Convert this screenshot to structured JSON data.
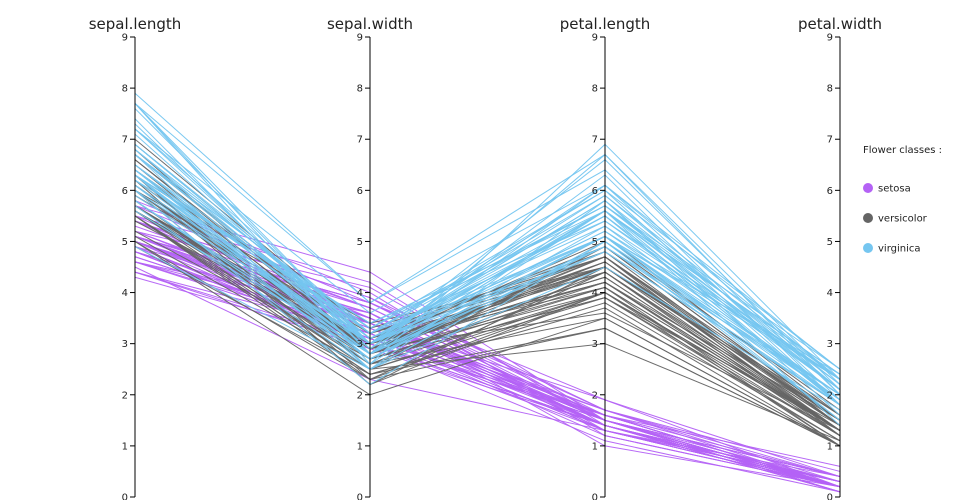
{
  "chart_data": {
    "type": "parallel_coordinates",
    "dimensions": [
      "sepal.length",
      "sepal.width",
      "petal.length",
      "petal.width"
    ],
    "axis_range": [
      0,
      9
    ],
    "ticks": [
      "0",
      "1",
      "2",
      "3",
      "4",
      "5",
      "6",
      "7",
      "8",
      "9"
    ],
    "legend": {
      "title": "Flower classes :",
      "placement": "right",
      "entries": [
        "setosa",
        "versicolor",
        "virginica"
      ]
    },
    "colors": {
      "setosa": "#b462f5",
      "versicolor": "#656565",
      "virginica": "#75c6f0"
    },
    "series": [
      {
        "name": "setosa",
        "rows": [
          [
            5.1,
            3.5,
            1.4,
            0.2
          ],
          [
            4.9,
            3.0,
            1.4,
            0.2
          ],
          [
            4.7,
            3.2,
            1.3,
            0.2
          ],
          [
            4.6,
            3.1,
            1.5,
            0.2
          ],
          [
            5.0,
            3.6,
            1.4,
            0.2
          ],
          [
            5.4,
            3.9,
            1.7,
            0.4
          ],
          [
            4.6,
            3.4,
            1.4,
            0.3
          ],
          [
            5.0,
            3.4,
            1.5,
            0.2
          ],
          [
            4.4,
            2.9,
            1.4,
            0.2
          ],
          [
            4.9,
            3.1,
            1.5,
            0.1
          ],
          [
            5.4,
            3.7,
            1.5,
            0.2
          ],
          [
            4.8,
            3.4,
            1.6,
            0.2
          ],
          [
            4.8,
            3.0,
            1.4,
            0.1
          ],
          [
            4.3,
            3.0,
            1.1,
            0.1
          ],
          [
            5.8,
            4.0,
            1.2,
            0.2
          ],
          [
            5.7,
            4.4,
            1.5,
            0.4
          ],
          [
            5.4,
            3.9,
            1.3,
            0.4
          ],
          [
            5.1,
            3.5,
            1.4,
            0.3
          ],
          [
            5.7,
            3.8,
            1.7,
            0.3
          ],
          [
            5.1,
            3.8,
            1.5,
            0.3
          ],
          [
            5.4,
            3.4,
            1.7,
            0.2
          ],
          [
            5.1,
            3.7,
            1.5,
            0.4
          ],
          [
            4.6,
            3.6,
            1.0,
            0.2
          ],
          [
            5.1,
            3.3,
            1.7,
            0.5
          ],
          [
            4.8,
            3.4,
            1.9,
            0.2
          ],
          [
            5.0,
            3.0,
            1.6,
            0.2
          ],
          [
            5.0,
            3.4,
            1.6,
            0.4
          ],
          [
            5.2,
            3.5,
            1.5,
            0.2
          ],
          [
            5.2,
            3.4,
            1.4,
            0.2
          ],
          [
            4.7,
            3.2,
            1.6,
            0.2
          ],
          [
            4.8,
            3.1,
            1.6,
            0.2
          ],
          [
            5.4,
            3.4,
            1.5,
            0.4
          ],
          [
            5.2,
            4.1,
            1.5,
            0.1
          ],
          [
            5.5,
            4.2,
            1.4,
            0.2
          ],
          [
            4.9,
            3.1,
            1.5,
            0.2
          ],
          [
            5.0,
            3.2,
            1.2,
            0.2
          ],
          [
            5.5,
            3.5,
            1.3,
            0.2
          ],
          [
            4.9,
            3.6,
            1.4,
            0.1
          ],
          [
            4.4,
            3.0,
            1.3,
            0.2
          ],
          [
            5.1,
            3.4,
            1.5,
            0.2
          ],
          [
            5.0,
            3.5,
            1.3,
            0.3
          ],
          [
            4.5,
            2.3,
            1.3,
            0.3
          ],
          [
            4.4,
            3.2,
            1.3,
            0.2
          ],
          [
            5.0,
            3.5,
            1.6,
            0.6
          ],
          [
            5.1,
            3.8,
            1.9,
            0.4
          ],
          [
            4.8,
            3.0,
            1.4,
            0.3
          ],
          [
            5.1,
            3.8,
            1.6,
            0.2
          ],
          [
            4.6,
            3.2,
            1.4,
            0.2
          ],
          [
            5.3,
            3.7,
            1.5,
            0.2
          ],
          [
            5.0,
            3.3,
            1.4,
            0.2
          ]
        ]
      },
      {
        "name": "versicolor",
        "rows": [
          [
            7.0,
            3.2,
            4.7,
            1.4
          ],
          [
            6.4,
            3.2,
            4.5,
            1.5
          ],
          [
            6.9,
            3.1,
            4.9,
            1.5
          ],
          [
            5.5,
            2.3,
            4.0,
            1.3
          ],
          [
            6.5,
            2.8,
            4.6,
            1.5
          ],
          [
            5.7,
            2.8,
            4.5,
            1.3
          ],
          [
            6.3,
            3.3,
            4.7,
            1.6
          ],
          [
            4.9,
            2.4,
            3.3,
            1.0
          ],
          [
            6.6,
            2.9,
            4.6,
            1.3
          ],
          [
            5.2,
            2.7,
            3.9,
            1.4
          ],
          [
            5.0,
            2.0,
            3.5,
            1.0
          ],
          [
            5.9,
            3.0,
            4.2,
            1.5
          ],
          [
            6.0,
            2.2,
            4.0,
            1.0
          ],
          [
            6.1,
            2.9,
            4.7,
            1.4
          ],
          [
            5.6,
            2.9,
            3.6,
            1.3
          ],
          [
            6.7,
            3.1,
            4.4,
            1.4
          ],
          [
            5.6,
            3.0,
            4.5,
            1.5
          ],
          [
            5.8,
            2.7,
            4.1,
            1.0
          ],
          [
            6.2,
            2.2,
            4.5,
            1.5
          ],
          [
            5.6,
            2.5,
            3.9,
            1.1
          ],
          [
            5.9,
            3.2,
            4.8,
            1.8
          ],
          [
            6.1,
            2.8,
            4.0,
            1.3
          ],
          [
            6.3,
            2.5,
            4.9,
            1.5
          ],
          [
            6.1,
            2.8,
            4.7,
            1.2
          ],
          [
            6.4,
            2.9,
            4.3,
            1.3
          ],
          [
            6.6,
            3.0,
            4.4,
            1.4
          ],
          [
            6.8,
            2.8,
            4.8,
            1.4
          ],
          [
            6.7,
            3.0,
            5.0,
            1.7
          ],
          [
            6.0,
            2.9,
            4.5,
            1.5
          ],
          [
            5.7,
            2.6,
            3.5,
            1.0
          ],
          [
            5.5,
            2.4,
            3.8,
            1.1
          ],
          [
            5.5,
            2.4,
            3.7,
            1.0
          ],
          [
            5.8,
            2.7,
            3.9,
            1.2
          ],
          [
            6.0,
            2.7,
            5.1,
            1.6
          ],
          [
            5.4,
            3.0,
            4.5,
            1.5
          ],
          [
            6.0,
            3.4,
            4.5,
            1.6
          ],
          [
            6.7,
            3.1,
            4.7,
            1.5
          ],
          [
            6.3,
            2.3,
            4.4,
            1.3
          ],
          [
            5.6,
            3.0,
            4.1,
            1.3
          ],
          [
            5.5,
            2.5,
            4.0,
            1.3
          ],
          [
            5.5,
            2.6,
            4.4,
            1.2
          ],
          [
            6.1,
            3.0,
            4.6,
            1.4
          ],
          [
            5.8,
            2.6,
            4.0,
            1.2
          ],
          [
            5.0,
            2.3,
            3.3,
            1.0
          ],
          [
            5.6,
            2.7,
            4.2,
            1.3
          ],
          [
            5.7,
            3.0,
            4.2,
            1.2
          ],
          [
            5.7,
            2.9,
            4.2,
            1.3
          ],
          [
            6.2,
            2.9,
            4.3,
            1.3
          ],
          [
            5.1,
            2.5,
            3.0,
            1.1
          ],
          [
            5.7,
            2.8,
            4.1,
            1.3
          ]
        ]
      },
      {
        "name": "virginica",
        "rows": [
          [
            6.3,
            3.3,
            6.0,
            2.5
          ],
          [
            5.8,
            2.7,
            5.1,
            1.9
          ],
          [
            7.1,
            3.0,
            5.9,
            2.1
          ],
          [
            6.3,
            2.9,
            5.6,
            1.8
          ],
          [
            6.5,
            3.0,
            5.8,
            2.2
          ],
          [
            7.6,
            3.0,
            6.6,
            2.1
          ],
          [
            4.9,
            2.5,
            4.5,
            1.7
          ],
          [
            7.3,
            2.9,
            6.3,
            1.8
          ],
          [
            6.7,
            2.5,
            5.8,
            1.8
          ],
          [
            7.2,
            3.6,
            6.1,
            2.5
          ],
          [
            6.5,
            3.2,
            5.1,
            2.0
          ],
          [
            6.4,
            2.7,
            5.3,
            1.9
          ],
          [
            6.8,
            3.0,
            5.5,
            2.1
          ],
          [
            5.7,
            2.5,
            5.0,
            2.0
          ],
          [
            5.8,
            2.8,
            5.1,
            2.4
          ],
          [
            6.4,
            3.2,
            5.3,
            2.3
          ],
          [
            6.5,
            3.0,
            5.5,
            1.8
          ],
          [
            7.7,
            3.8,
            6.7,
            2.2
          ],
          [
            7.7,
            2.6,
            6.9,
            2.3
          ],
          [
            6.0,
            2.2,
            5.0,
            1.5
          ],
          [
            6.9,
            3.2,
            5.7,
            2.3
          ],
          [
            5.6,
            2.8,
            4.9,
            2.0
          ],
          [
            7.7,
            2.8,
            6.7,
            2.0
          ],
          [
            6.3,
            2.7,
            4.9,
            1.8
          ],
          [
            6.7,
            3.3,
            5.7,
            2.1
          ],
          [
            7.2,
            3.2,
            6.0,
            1.8
          ],
          [
            6.2,
            2.8,
            4.8,
            1.8
          ],
          [
            6.1,
            3.0,
            4.9,
            1.8
          ],
          [
            6.4,
            2.8,
            5.6,
            2.1
          ],
          [
            7.2,
            3.0,
            5.8,
            1.6
          ],
          [
            7.4,
            2.8,
            6.1,
            1.9
          ],
          [
            7.9,
            3.8,
            6.4,
            2.0
          ],
          [
            6.4,
            2.8,
            5.6,
            2.2
          ],
          [
            6.3,
            2.8,
            5.1,
            1.5
          ],
          [
            6.1,
            2.6,
            5.6,
            1.4
          ],
          [
            7.7,
            3.0,
            6.1,
            2.3
          ],
          [
            6.3,
            3.4,
            5.6,
            2.4
          ],
          [
            6.4,
            3.1,
            5.5,
            1.8
          ],
          [
            6.0,
            3.0,
            4.8,
            1.8
          ],
          [
            6.9,
            3.1,
            5.4,
            2.1
          ],
          [
            6.7,
            3.1,
            5.6,
            2.4
          ],
          [
            6.9,
            3.1,
            5.1,
            2.3
          ],
          [
            5.8,
            2.7,
            5.1,
            1.9
          ],
          [
            6.8,
            3.2,
            5.9,
            2.3
          ],
          [
            6.7,
            3.3,
            5.7,
            2.5
          ],
          [
            6.7,
            3.0,
            5.2,
            2.3
          ],
          [
            6.3,
            2.5,
            5.0,
            1.9
          ],
          [
            6.5,
            3.0,
            5.2,
            2.0
          ],
          [
            6.2,
            3.4,
            5.4,
            2.3
          ],
          [
            5.9,
            3.0,
            5.1,
            1.8
          ]
        ]
      }
    ]
  }
}
